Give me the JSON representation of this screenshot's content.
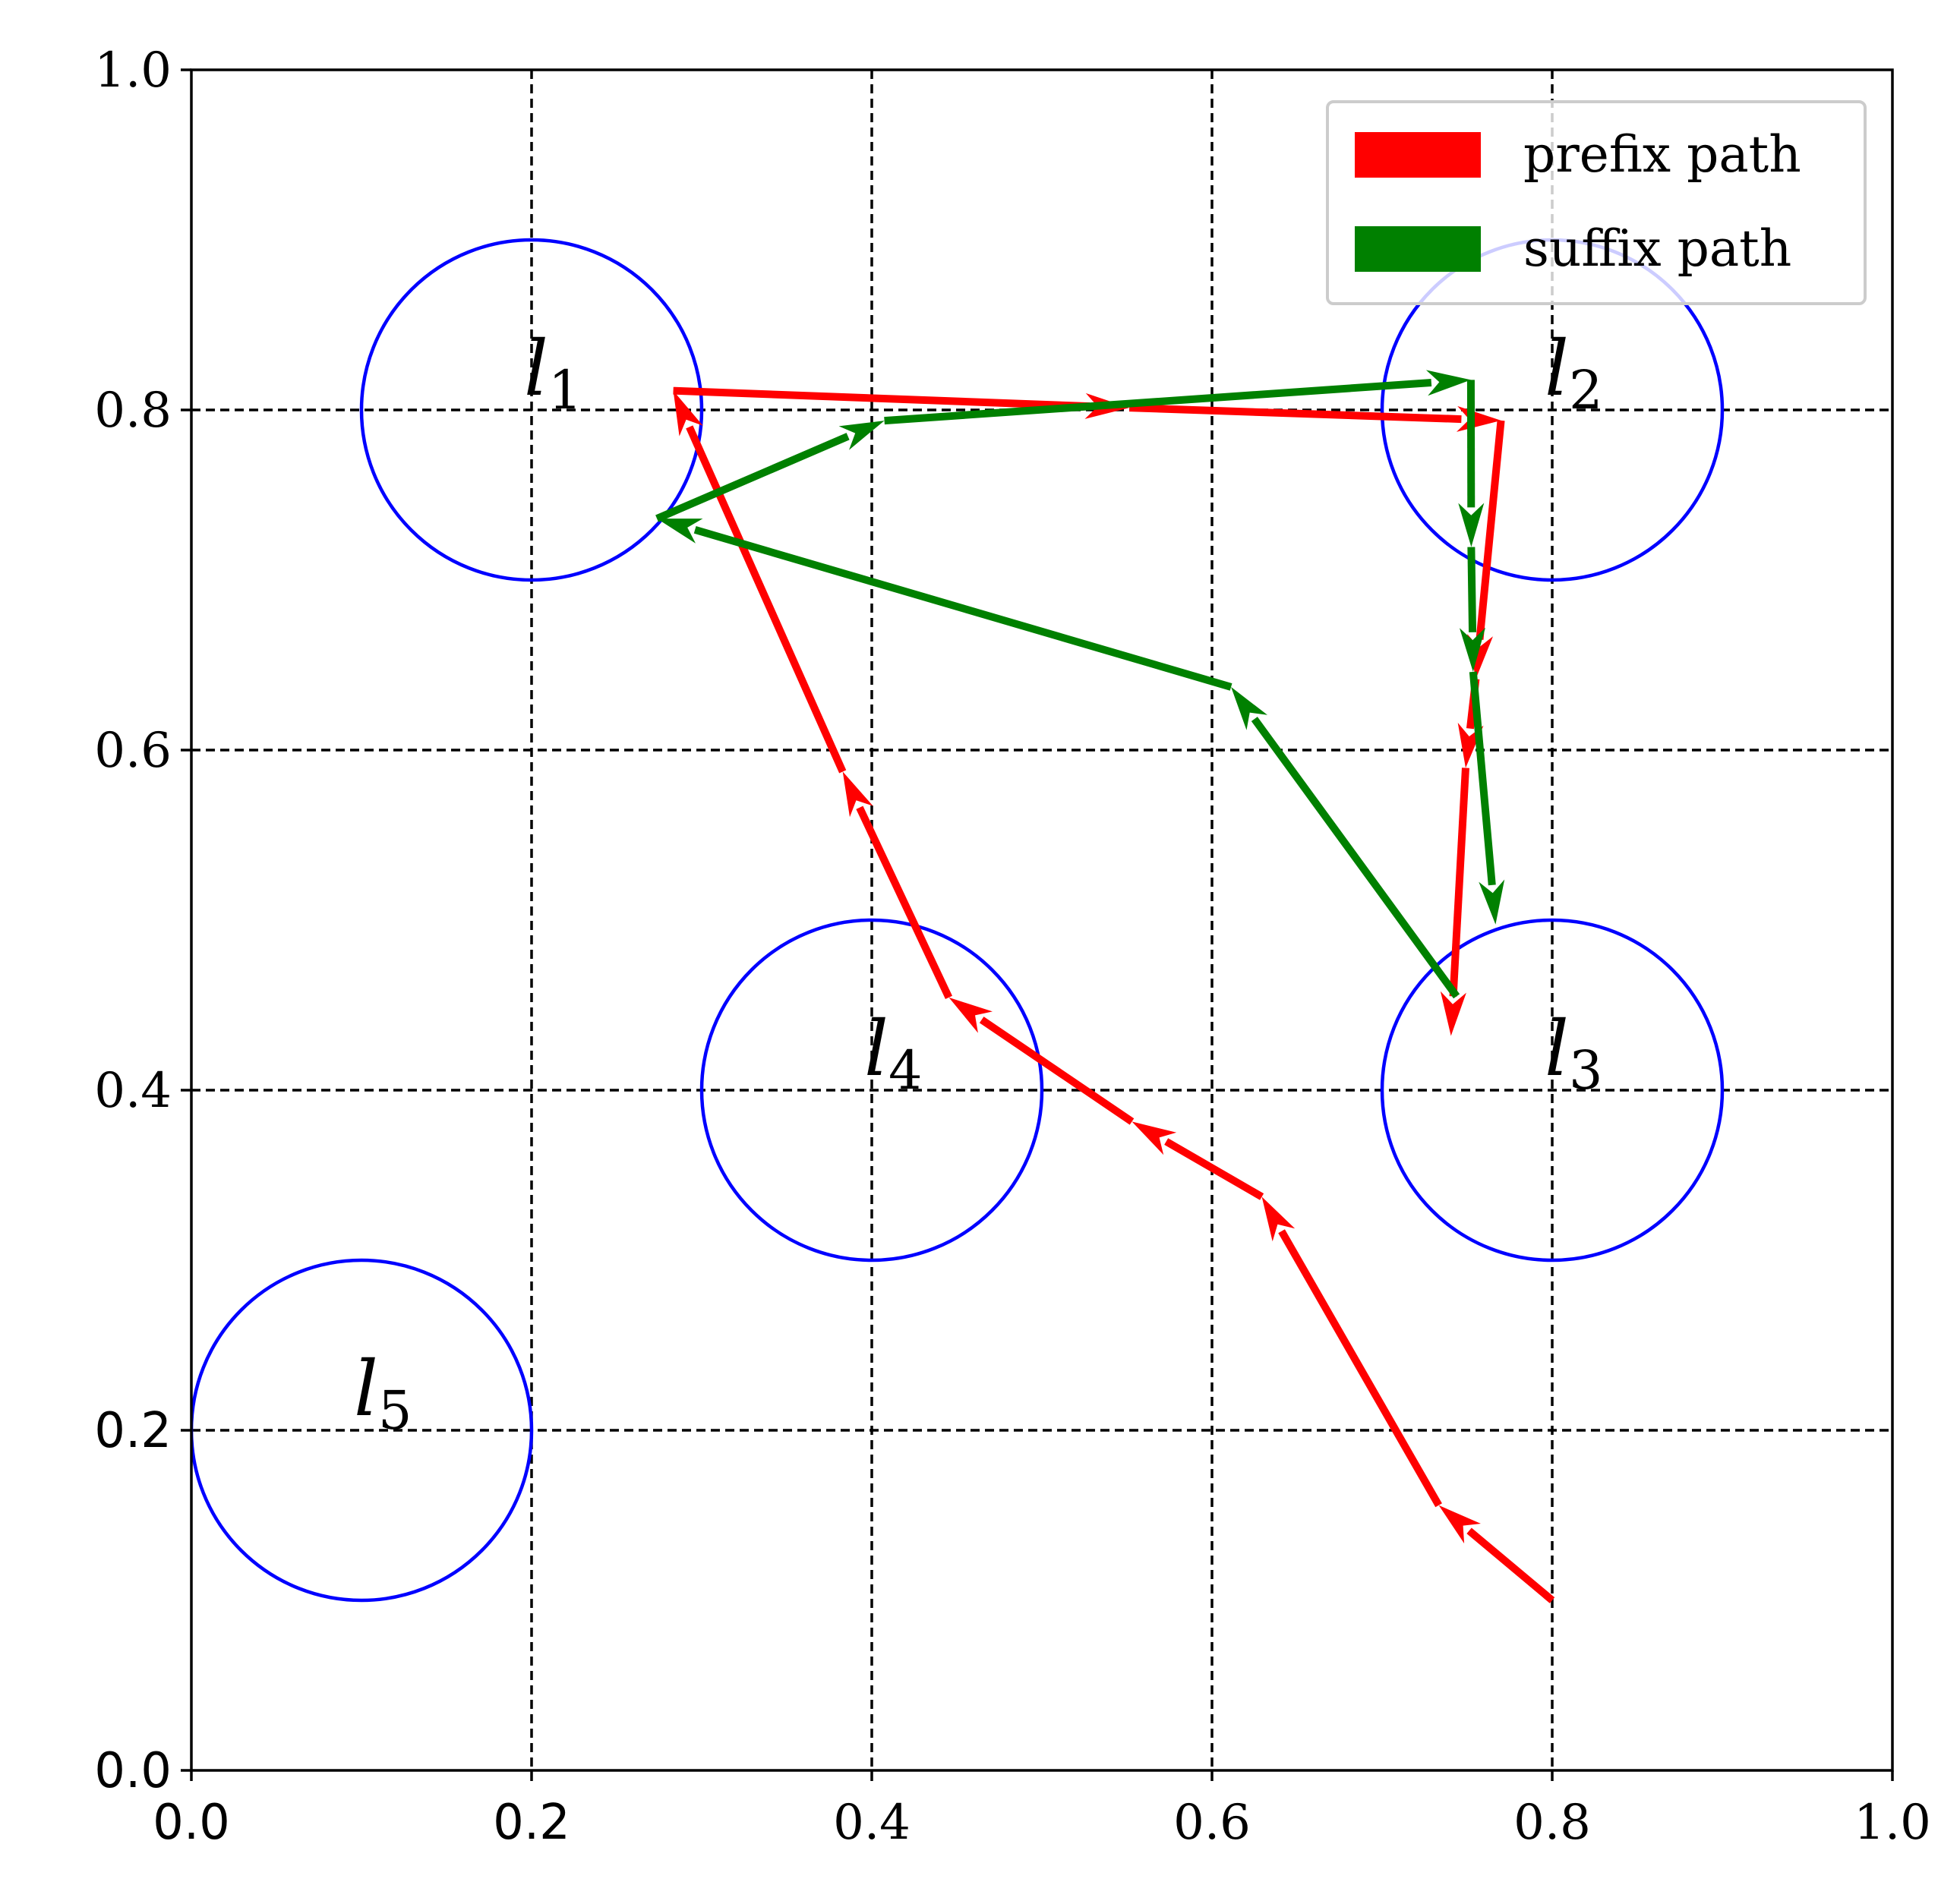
{
  "chart_data": {
    "type": "scatter",
    "title": "",
    "xlabel": "",
    "ylabel": "",
    "xlim": [
      0.0,
      1.0
    ],
    "ylim": [
      0.0,
      1.0
    ],
    "x_ticks": [
      "0.0",
      "0.2",
      "0.4",
      "0.6",
      "0.8",
      "1.0"
    ],
    "y_ticks": [
      "0.0",
      "0.2",
      "0.4",
      "0.6",
      "0.8",
      "1.0"
    ],
    "grid": true,
    "grid_style": "dashed",
    "legend_position": "top-right",
    "regions": [
      {
        "label": "l",
        "sub": "1",
        "center": [
          0.2,
          0.8
        ],
        "radius": 0.1
      },
      {
        "label": "l",
        "sub": "2",
        "center": [
          0.8,
          0.8
        ],
        "radius": 0.1
      },
      {
        "label": "l",
        "sub": "3",
        "center": [
          0.8,
          0.4
        ],
        "radius": 0.1
      },
      {
        "label": "l",
        "sub": "4",
        "center": [
          0.4,
          0.4
        ],
        "radius": 0.1
      },
      {
        "label": "l",
        "sub": "5",
        "center": [
          0.1,
          0.2
        ],
        "radius": 0.1
      }
    ],
    "region_color": "#0000ff",
    "series": [
      {
        "name": "prefix path",
        "color": "#ff0000",
        "points": [
          [
            0.8,
            0.1
          ],
          [
            0.7333,
            0.1559
          ],
          [
            0.6293,
            0.3373
          ],
          [
            0.5529,
            0.3815
          ],
          [
            0.4453,
            0.4545
          ],
          [
            0.3829,
            0.5873
          ],
          [
            0.2833,
            0.8113
          ],
          [
            0.5514,
            0.8013
          ],
          [
            0.7699,
            0.7938
          ],
          [
            0.7551,
            0.6418
          ],
          [
            0.7491,
            0.5895
          ],
          [
            0.7405,
            0.4319
          ]
        ]
      },
      {
        "name": "suffix path",
        "color": "#008000",
        "points": [
          [
            0.7438,
            0.4552
          ],
          [
            0.6112,
            0.6371
          ],
          [
            0.2737,
            0.7361
          ],
          [
            0.4074,
            0.7937
          ],
          [
            0.7522,
            0.8177
          ],
          [
            0.7524,
            0.7194
          ],
          [
            0.7535,
            0.646
          ],
          [
            0.7667,
            0.4974
          ]
        ]
      }
    ]
  }
}
